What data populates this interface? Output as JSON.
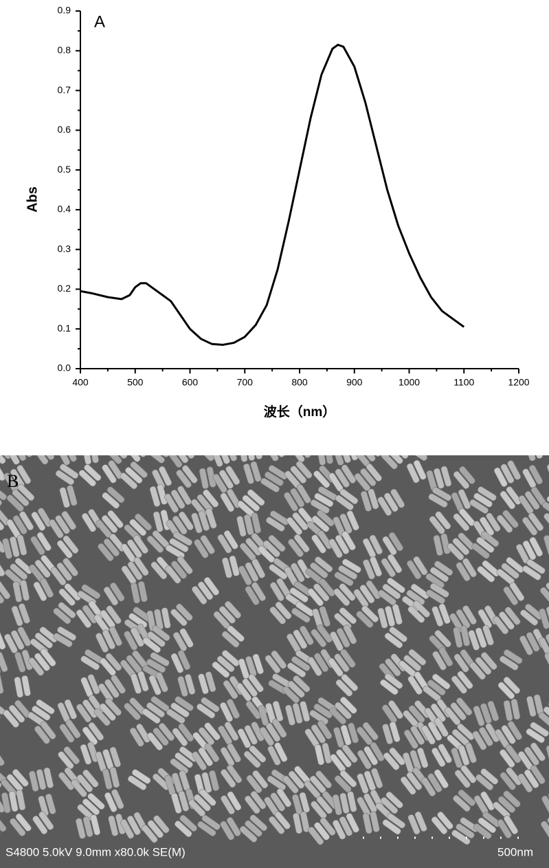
{
  "chart_data": {
    "type": "line",
    "annotation": "A",
    "y_label": "Abs",
    "x_label": "波长（nm）",
    "x": [
      400,
      420,
      450,
      475,
      490,
      500,
      510,
      520,
      530,
      550,
      565,
      580,
      600,
      620,
      640,
      660,
      680,
      700,
      720,
      740,
      760,
      780,
      800,
      820,
      840,
      860,
      870,
      880,
      900,
      920,
      940,
      960,
      980,
      1000,
      1020,
      1040,
      1060,
      1080,
      1100
    ],
    "values": [
      0.195,
      0.19,
      0.18,
      0.175,
      0.185,
      0.205,
      0.215,
      0.215,
      0.205,
      0.185,
      0.17,
      0.14,
      0.1,
      0.075,
      0.062,
      0.06,
      0.065,
      0.08,
      0.11,
      0.16,
      0.25,
      0.37,
      0.5,
      0.63,
      0.74,
      0.805,
      0.815,
      0.81,
      0.76,
      0.67,
      0.56,
      0.45,
      0.36,
      0.29,
      0.23,
      0.18,
      0.145,
      0.125,
      0.105
    ],
    "color": "#000000",
    "xlim": [
      400,
      1200
    ],
    "xticks": [
      400,
      500,
      600,
      700,
      800,
      900,
      1000,
      1100,
      1200
    ],
    "ylim": [
      0,
      0.9
    ],
    "yticks": [
      {
        "value": 0,
        "label": "0.0"
      },
      0.1,
      0.2,
      0.3,
      0.4,
      0.5,
      0.6,
      0.7,
      0.8,
      0.9
    ],
    "grid": false
  },
  "image_panel": {
    "label": "B",
    "info": "S4800 5.0kV 9.0mm x80.0k SE(M)",
    "scale_bar": "500nm"
  }
}
